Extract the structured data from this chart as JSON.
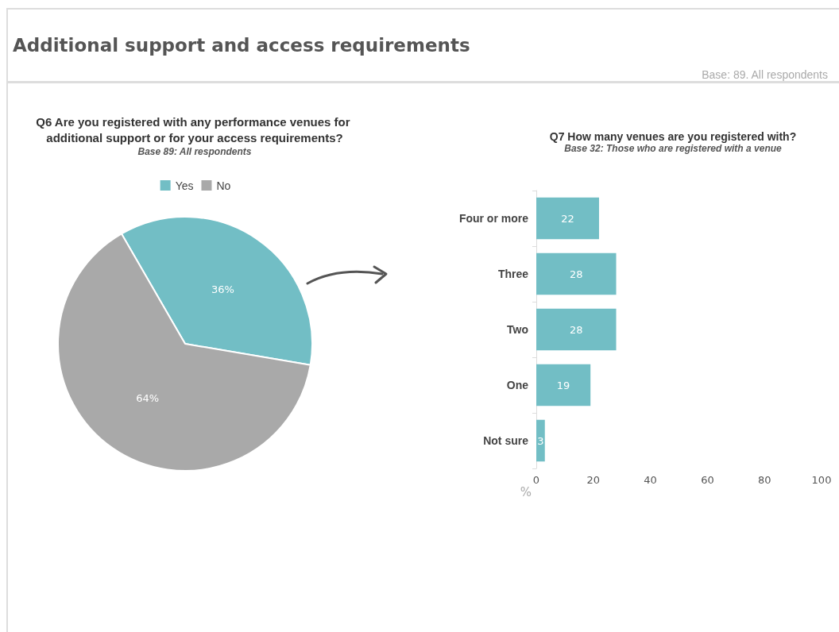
{
  "chart_data": [
    {
      "type": "pie",
      "title": "Q6 Are you registered with any performance venues for additional support or for your access requirements?",
      "subtitle": "Base 89: All respondents",
      "annotations": [
        "Additional support and access requirements",
        "Base: 89. All respondents"
      ],
      "categories": [
        "Yes",
        "No"
      ],
      "values": [
        36,
        64
      ],
      "colors": [
        "#72bec5",
        "#a9a9a9"
      ],
      "legend": "top",
      "value_labels": [
        "36%",
        "64%"
      ]
    },
    {
      "type": "bar",
      "orientation": "horizontal",
      "title": "Q7 How many venues are you registered with?",
      "subtitle": "Base 32: Those who are registered with a venue",
      "xlabel": "%",
      "categories": [
        "Four or more",
        "Three",
        "Two",
        "One",
        "Not sure"
      ],
      "values": [
        22,
        28,
        28,
        19,
        3
      ],
      "color": "#72bec5",
      "xlim": [
        0,
        100
      ],
      "xticks": [
        0,
        20,
        40,
        60,
        80,
        100
      ],
      "grid": false,
      "data_labels": true
    }
  ]
}
